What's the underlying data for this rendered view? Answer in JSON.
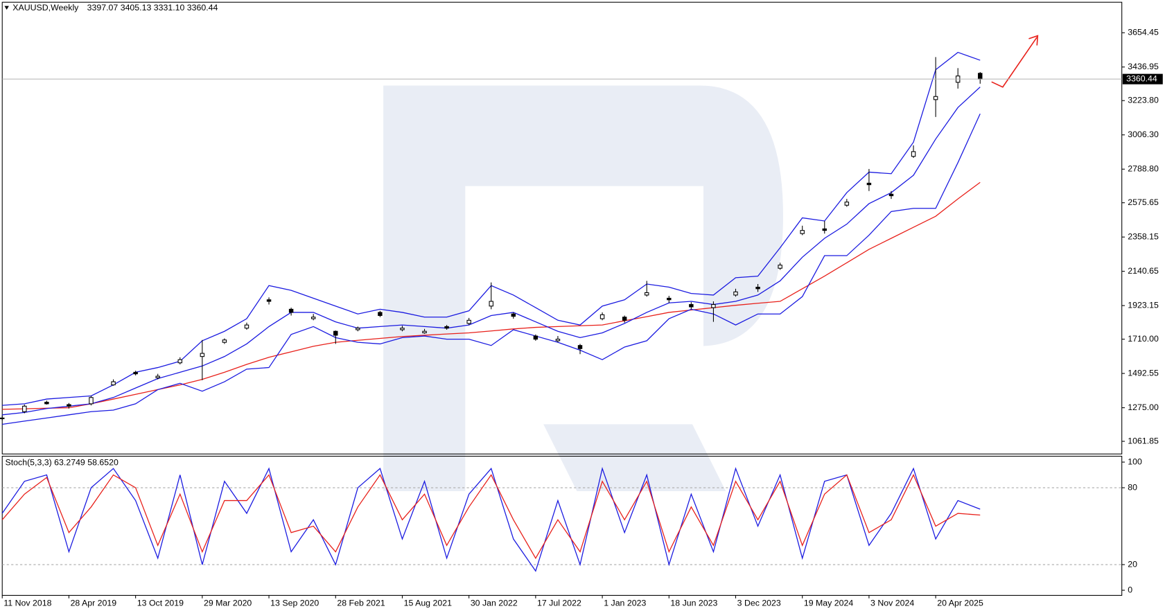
{
  "chart_data": [
    {
      "type": "candlestick",
      "title": "XAUUSD,Weekly",
      "quote": "3397.07 3405.13 3331.10 3360.44",
      "x": [
        0,
        8,
        16,
        24,
        32,
        40,
        48,
        56,
        64,
        72,
        80,
        88,
        96,
        104,
        112,
        120,
        128,
        136,
        144,
        152,
        160,
        168,
        176,
        184,
        192,
        200,
        208,
        216,
        224,
        232,
        240,
        248,
        256,
        264,
        272,
        280,
        288,
        296,
        304,
        312,
        320,
        328,
        336,
        344,
        352
      ],
      "open": [
        1205,
        1250,
        1310,
        1295,
        1300,
        1420,
        1500,
        1465,
        1560,
        1600,
        1690,
        1780,
        1960,
        1900,
        1840,
        1760,
        1770,
        1880,
        1770,
        1750,
        1790,
        1810,
        1920,
        1870,
        1730,
        1700,
        1670,
        1840,
        1850,
        1990,
        1970,
        1930,
        1910,
        1990,
        2040,
        2160,
        2380,
        2410,
        2560,
        2700,
        2630,
        2870,
        3230,
        3340,
        3397.07
      ],
      "high": [
        1225,
        1295,
        1320,
        1305,
        1350,
        1455,
        1510,
        1490,
        1595,
        1705,
        1715,
        1815,
        1975,
        1910,
        1870,
        1765,
        1790,
        1890,
        1795,
        1775,
        1800,
        1845,
        2070,
        1880,
        1740,
        1730,
        1680,
        1880,
        1860,
        2080,
        1985,
        1945,
        1950,
        2030,
        2060,
        2195,
        2430,
        2460,
        2600,
        2790,
        2650,
        2940,
        3500,
        3430,
        3405.13
      ],
      "low": [
        1195,
        1240,
        1295,
        1270,
        1290,
        1415,
        1480,
        1455,
        1550,
        1450,
        1680,
        1770,
        1930,
        1860,
        1830,
        1680,
        1760,
        1850,
        1760,
        1745,
        1770,
        1800,
        1900,
        1840,
        1700,
        1690,
        1615,
        1830,
        1815,
        1980,
        1940,
        1900,
        1820,
        1980,
        2010,
        2150,
        2370,
        2380,
        2550,
        2650,
        2600,
        2860,
        3120,
        3300,
        3331.1
      ],
      "close": [
        1210,
        1285,
        1300,
        1285,
        1340,
        1440,
        1490,
        1475,
        1580,
        1620,
        1705,
        1800,
        1950,
        1880,
        1850,
        1735,
        1780,
        1860,
        1780,
        1760,
        1780,
        1830,
        1950,
        1855,
        1710,
        1710,
        1650,
        1865,
        1830,
        2005,
        1960,
        1915,
        1930,
        2010,
        2030,
        2180,
        2400,
        2400,
        2580,
        2690,
        2620,
        2900,
        3250,
        3380,
        3360.44
      ],
      "candle_color": "#000000",
      "series": [
        {
          "color": "#e8201a",
          "values": [
            1265,
            1268,
            1272,
            1275,
            1300,
            1330,
            1360,
            1390,
            1420,
            1455,
            1500,
            1550,
            1595,
            1630,
            1665,
            1690,
            1703,
            1715,
            1727,
            1735,
            1743,
            1750,
            1762,
            1775,
            1785,
            1790,
            1795,
            1800,
            1827,
            1853,
            1880,
            1895,
            1910,
            1925,
            1938,
            1950,
            2030,
            2110,
            2195,
            2280,
            2350,
            2420,
            2490,
            2600,
            2705
          ]
        },
        {
          "color": "#1a1ae0",
          "values": [
            1230,
            1245,
            1270,
            1285,
            1300,
            1340,
            1400,
            1460,
            1500,
            1540,
            1600,
            1680,
            1790,
            1880,
            1880,
            1820,
            1780,
            1790,
            1800,
            1790,
            1780,
            1800,
            1860,
            1880,
            1820,
            1760,
            1720,
            1750,
            1810,
            1880,
            1940,
            1950,
            1930,
            1950,
            1990,
            2080,
            2230,
            2350,
            2440,
            2570,
            2640,
            2750,
            2980,
            3180,
            3310
          ]
        },
        {
          "color": "#1a1ae0",
          "values": [
            1290,
            1300,
            1330,
            1340,
            1350,
            1420,
            1500,
            1530,
            1570,
            1700,
            1760,
            1840,
            2050,
            2020,
            1970,
            1920,
            1870,
            1900,
            1880,
            1850,
            1850,
            1890,
            2050,
            1990,
            1910,
            1830,
            1800,
            1920,
            1960,
            2060,
            2040,
            2000,
            1990,
            2100,
            2110,
            2290,
            2480,
            2460,
            2640,
            2770,
            2760,
            2960,
            3420,
            3530,
            3480
          ]
        },
        {
          "color": "#1a1ae0",
          "values": [
            1170,
            1190,
            1210,
            1230,
            1250,
            1260,
            1300,
            1390,
            1430,
            1380,
            1440,
            1520,
            1530,
            1740,
            1790,
            1720,
            1690,
            1680,
            1720,
            1730,
            1710,
            1710,
            1670,
            1770,
            1730,
            1690,
            1640,
            1580,
            1660,
            1700,
            1840,
            1900,
            1870,
            1800,
            1870,
            1870,
            1980,
            2240,
            2240,
            2370,
            2520,
            2540,
            2540,
            2830,
            3140
          ]
        }
      ],
      "last_price": 3360.44,
      "xlim": [
        0,
        403
      ],
      "ylim": [
        981.6,
        3848
      ],
      "yticks": [
        {
          "value": 3654.45,
          "label": "3654.45"
        },
        3436.95,
        {
          "value": 3223.8,
          "label": "3223.80"
        },
        {
          "value": 3006.3,
          "label": "3006.30"
        },
        {
          "value": 2788.8,
          "label": "2788.80"
        },
        2575.65,
        2358.15,
        2140.65,
        1923.15,
        {
          "value": 1710,
          "label": "1710.00"
        },
        1492.55,
        {
          "value": 1275,
          "label": "1275.00"
        },
        1061.85
      ]
    },
    {
      "type": "line",
      "title": "Stoch(5,3,3) 63.2749 58.6520",
      "x": [
        0,
        8,
        16,
        24,
        32,
        40,
        48,
        56,
        64,
        72,
        80,
        88,
        96,
        104,
        112,
        120,
        128,
        136,
        144,
        152,
        160,
        168,
        176,
        184,
        192,
        200,
        208,
        216,
        224,
        232,
        240,
        248,
        256,
        264,
        272,
        280,
        288,
        296,
        304,
        312,
        320,
        328,
        336,
        344,
        352
      ],
      "series": [
        {
          "color": "#1a1ae0",
          "values": [
            60,
            85,
            90,
            30,
            80,
            95,
            70,
            25,
            90,
            20,
            85,
            60,
            95,
            30,
            55,
            20,
            80,
            95,
            40,
            85,
            25,
            75,
            95,
            40,
            15,
            70,
            20,
            95,
            45,
            90,
            20,
            75,
            30,
            95,
            50,
            90,
            25,
            85,
            90,
            35,
            60,
            95,
            40,
            70,
            63.2749
          ]
        },
        {
          "color": "#e8201a",
          "values": [
            55,
            75,
            88,
            45,
            65,
            90,
            80,
            35,
            75,
            30,
            70,
            70,
            90,
            45,
            50,
            30,
            65,
            90,
            55,
            75,
            35,
            65,
            90,
            55,
            25,
            55,
            30,
            85,
            55,
            85,
            30,
            65,
            35,
            85,
            55,
            85,
            35,
            75,
            90,
            45,
            55,
            90,
            50,
            60,
            58.652
          ]
        }
      ],
      "levels": [
        80,
        20
      ],
      "xlim": [
        0,
        403
      ],
      "ylim": [
        -4,
        104.6
      ],
      "yticks": [
        100,
        80,
        20,
        0
      ],
      "xticks": [
        {
          "value": 0,
          "label": "11 Nov 2018"
        },
        {
          "value": 24,
          "label": "28 Apr 2019"
        },
        {
          "value": 48,
          "label": "13 Oct 2019"
        },
        {
          "value": 72,
          "label": "29 Mar 2020"
        },
        {
          "value": 96,
          "label": "13 Sep 2020"
        },
        {
          "value": 120,
          "label": "28 Feb 2021"
        },
        {
          "value": 144,
          "label": "15 Aug 2021"
        },
        {
          "value": 168,
          "label": "30 Jan 2022"
        },
        {
          "value": 192,
          "label": "17 Jul 2022"
        },
        {
          "value": 216,
          "label": "1 Jan 2023"
        },
        {
          "value": 240,
          "label": "18 Jun 2023"
        },
        {
          "value": 264,
          "label": "3 Dec 2023"
        },
        {
          "value": 288,
          "label": "19 May 2024"
        },
        {
          "value": 312,
          "label": "3 Nov 2024"
        },
        {
          "value": 336,
          "label": "20 Apr 2025"
        }
      ]
    }
  ]
}
